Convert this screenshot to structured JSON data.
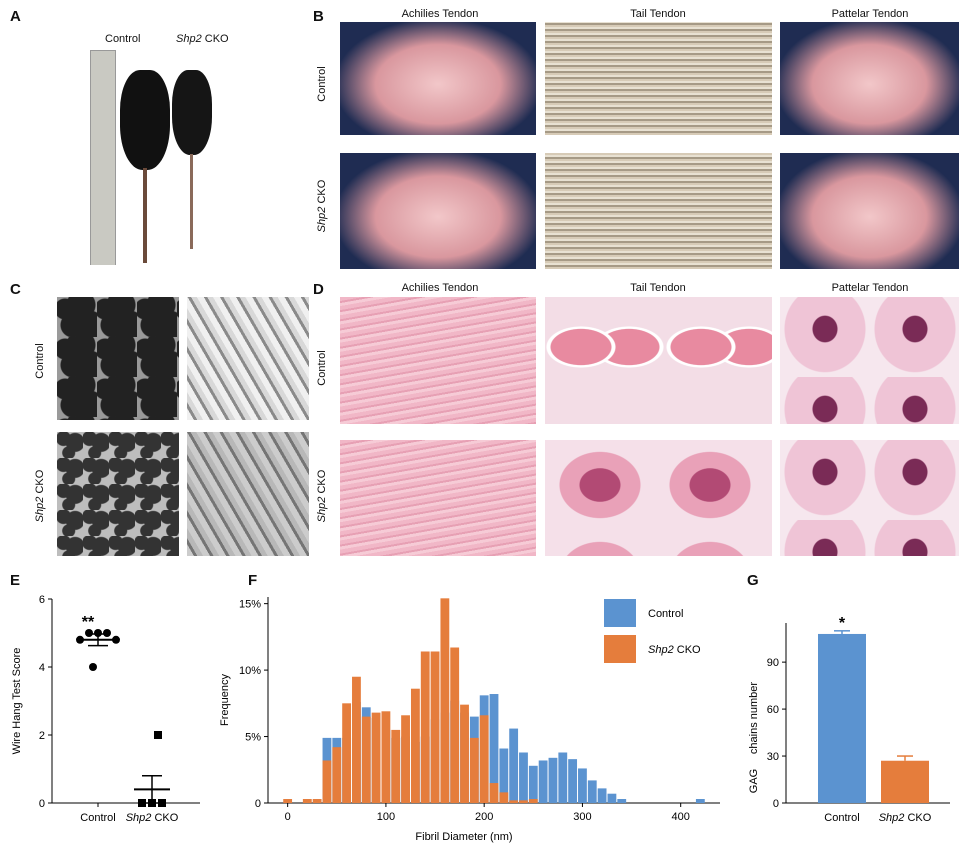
{
  "panels": {
    "A": {
      "letter": "A",
      "col_control": "Control",
      "col_cko_gene": "Shp2",
      "col_cko_suffix": " CKO"
    },
    "B": {
      "letter": "B",
      "cols": [
        "Achilies Tendon",
        "Tail Tendon",
        "Pattelar Tendon"
      ],
      "row_control": "Control",
      "row_cko_gene": "Shp2",
      "row_cko_suffix": " CKO"
    },
    "C": {
      "letter": "C",
      "row_control": "Control",
      "row_cko_gene": "Shp2",
      "row_cko_suffix": " CKO"
    },
    "D": {
      "letter": "D",
      "cols": [
        "Achilies Tendon",
        "Tail Tendon",
        "Pattelar Tendon"
      ],
      "row_control": "Control",
      "row_cko_gene": "Shp2",
      "row_cko_suffix": " CKO"
    },
    "E": {
      "letter": "E"
    },
    "F": {
      "letter": "F"
    },
    "G": {
      "letter": "G"
    }
  },
  "chart_data": [
    {
      "id": "E",
      "type": "scatter",
      "ylabel": "Wire Hang Test Score",
      "ylim": [
        0,
        6
      ],
      "yticks": [
        0,
        2,
        4,
        6
      ],
      "categories": [
        "Control",
        "Shp2 CKO"
      ],
      "category_labels": [
        {
          "gene": "",
          "text": "Control"
        },
        {
          "gene": "Shp2",
          "text": " CKO"
        }
      ],
      "series": [
        {
          "name": "Control",
          "marker": "circle",
          "values": [
            4.8,
            5.0,
            5.0,
            5.0,
            4.8,
            4.0
          ],
          "mean": 4.8,
          "sem": 0.17
        },
        {
          "name": "Shp2 CKO",
          "marker": "square",
          "values": [
            2.0,
            0,
            0,
            0,
            0,
            0
          ],
          "mean": 0.4,
          "sem": 0.4
        }
      ],
      "annotation": "**"
    },
    {
      "id": "F",
      "type": "bar",
      "xlabel": "Fibril Diameter (nm)",
      "ylabel": "Frequency",
      "xlim": [
        -20,
        440
      ],
      "xticks": [
        0,
        100,
        200,
        300,
        400
      ],
      "ylim": [
        0,
        15.5
      ],
      "yticks": [
        0,
        5,
        10,
        15
      ],
      "ytick_labels": [
        "0",
        "5%",
        "10%",
        "15%"
      ],
      "bin_width": 10,
      "legend": {
        "position": "top-right",
        "entries": [
          {
            "name": "Control",
            "gene": "",
            "suffix": "Control",
            "color": "#5b93d0"
          },
          {
            "name": "Shp2 CKO",
            "gene": "Shp2",
            "suffix": " CKO",
            "color": "#e57d3c"
          }
        ]
      },
      "series": [
        {
          "name": "Control",
          "color": "#5b93d0",
          "x": [
            40,
            50,
            60,
            70,
            80,
            90,
            100,
            110,
            120,
            130,
            140,
            150,
            160,
            170,
            180,
            190,
            200,
            210,
            220,
            230,
            240,
            250,
            260,
            270,
            280,
            290,
            300,
            310,
            320,
            330,
            340,
            420
          ],
          "values": [
            4.9,
            4.9,
            4.9,
            7.6,
            7.2,
            6.4,
            5.5,
            4.9,
            5.0,
            4.6,
            5.0,
            6.3,
            6.8,
            7.7,
            6.8,
            6.5,
            8.1,
            8.2,
            4.1,
            5.6,
            3.8,
            2.8,
            3.2,
            3.4,
            3.8,
            3.3,
            2.6,
            1.7,
            1.1,
            0.7,
            0.3,
            0.3
          ]
        },
        {
          "name": "Shp2 CKO",
          "color": "#e57d3c",
          "x": [
            0,
            20,
            30,
            40,
            50,
            60,
            70,
            80,
            90,
            100,
            110,
            120,
            130,
            140,
            150,
            160,
            170,
            180,
            190,
            200,
            210,
            220,
            230,
            240,
            250
          ],
          "values": [
            0.3,
            0.3,
            0.3,
            3.2,
            4.2,
            7.5,
            9.5,
            6.5,
            6.8,
            6.9,
            5.5,
            6.6,
            8.6,
            11.4,
            11.4,
            15.4,
            11.7,
            7.4,
            4.9,
            6.6,
            1.5,
            0.8,
            0.2,
            0.2,
            0.3
          ]
        }
      ]
    },
    {
      "id": "G",
      "type": "bar",
      "ylabel_line1": "GAG",
      "ylabel_line2": "chains number",
      "ylim": [
        0,
        115
      ],
      "yticks": [
        0,
        30,
        60,
        90
      ],
      "categories": [
        "Control",
        "Shp2 CKO"
      ],
      "category_labels": [
        {
          "gene": "",
          "text": "Control"
        },
        {
          "gene": "Shp2",
          "text": " CKO"
        }
      ],
      "values": [
        108,
        27
      ],
      "errors": [
        2,
        3
      ],
      "colors": [
        "#5b93d0",
        "#e57d3c"
      ],
      "annotation": "*"
    }
  ]
}
